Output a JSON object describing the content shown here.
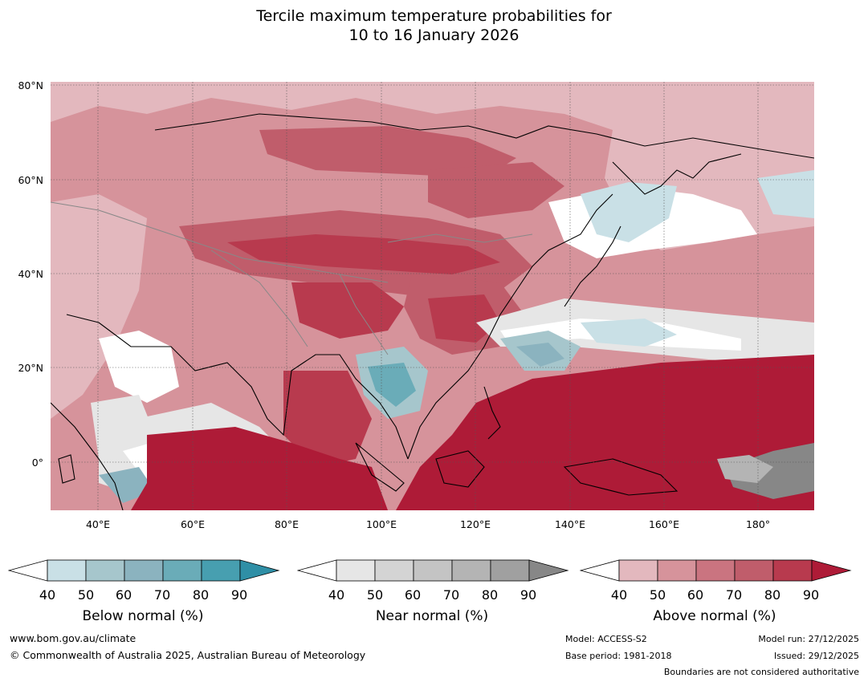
{
  "title": {
    "line1": "Tercile maximum temperature probabilities for",
    "line2": "10 to 16 January 2026"
  },
  "axes": {
    "lat_labels": [
      "80°N",
      "60°N",
      "40°N",
      "20°N",
      "0°"
    ],
    "lon_labels": [
      "40°E",
      "60°E",
      "80°E",
      "100°E",
      "120°E",
      "140°E",
      "160°E",
      "180°"
    ]
  },
  "chart_data": {
    "type": "heatmap",
    "title": "Tercile maximum temperature probabilities for 10 to 16 January 2026",
    "lat_range": [
      -10,
      80
    ],
    "lon_range": [
      30,
      192
    ],
    "categories": [
      "Below normal",
      "Near normal",
      "Above normal"
    ],
    "tick_values": [
      40,
      50,
      60,
      70,
      80,
      90
    ],
    "grid": true
  },
  "colorbars": [
    {
      "label": "Below normal (%)",
      "ticks": [
        "40",
        "50",
        "60",
        "70",
        "80",
        "90"
      ],
      "colors": [
        "#c9e0e6",
        "#a6c6cc",
        "#8bb3bf",
        "#6aacb8",
        "#479fb0",
        "#2f8fa6"
      ]
    },
    {
      "label": "Near normal (%)",
      "ticks": [
        "40",
        "50",
        "60",
        "70",
        "80",
        "90"
      ],
      "colors": [
        "#e6e6e6",
        "#d4d4d4",
        "#c4c4c4",
        "#b4b4b4",
        "#a0a0a0",
        "#878787"
      ]
    },
    {
      "label": "Above normal (%)",
      "ticks": [
        "40",
        "50",
        "60",
        "70",
        "80",
        "90"
      ],
      "colors": [
        "#e3b8be",
        "#d6939b",
        "#ca7480",
        "#c05d6b",
        "#b83a4e",
        "#ae1b37"
      ]
    }
  ],
  "footer": {
    "website": "www.bom.gov.au/climate",
    "copyright": "© Commonwealth of Australia 2025, Australian Bureau of Meteorology",
    "model": "Model: ACCESS-S2",
    "base_period": "Base period: 1981-2018",
    "model_run": "Model run: 27/12/2025",
    "issued": "Issued: 29/12/2025",
    "disclaimer": "Boundaries are not considered authoritative"
  }
}
